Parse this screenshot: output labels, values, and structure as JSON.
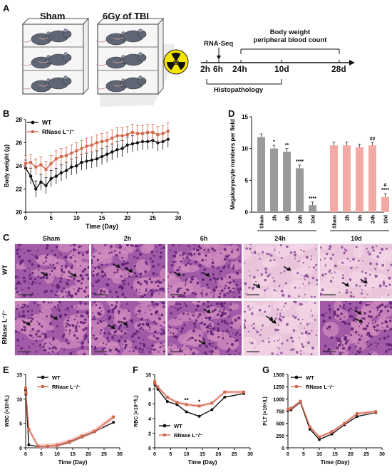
{
  "panels": {
    "A": "A",
    "B": "B",
    "C": "C",
    "D": "D",
    "E": "E",
    "F": "F",
    "G": "G"
  },
  "panel_a": {
    "cage_left_label": "Sham",
    "cage_right_label": "6Gy of TBI",
    "rnaseq_label": "RNA-Seq",
    "bw_label_line1": "Body weight",
    "bw_label_line2": "peripheral blood count",
    "histo_label": "Histopathology",
    "timeline_ticks": [
      "2h",
      "6h",
      "24h",
      "10d",
      "28d"
    ],
    "colors": {
      "cage_line": "#555555",
      "mouse": "#5f6776",
      "radiation_yellow": "#f5e400",
      "timeline": "#111111"
    }
  },
  "panel_c": {
    "col_labels": [
      "Sham",
      "2h",
      "6h",
      "24h",
      "10d"
    ],
    "row_labels": [
      "WT",
      "RNase L⁻/⁻"
    ],
    "colors": {
      "stain_purple": "#7a3a8e",
      "stain_pink": "#e7a7c8",
      "arrow": "#111111"
    }
  },
  "legend": {
    "wt": "WT",
    "ko": "RNase L⁻/⁻"
  },
  "colors": {
    "wt": "#111111",
    "ko": "#d2694e",
    "ko_fill": "#f3a9a4",
    "sham_bar": "#9a9a9a"
  },
  "chart_data": [
    {
      "id": "B",
      "type": "line",
      "xlabel": "Time (Day)",
      "ylabel": "Body weight (g)",
      "xlim": [
        0,
        30
      ],
      "ylim": [
        20,
        28
      ],
      "xticks": [
        0,
        5,
        10,
        15,
        20,
        25,
        30
      ],
      "yticks": [
        20,
        22,
        24,
        26,
        28
      ],
      "x": [
        0,
        1,
        2,
        3,
        4,
        5,
        6,
        7,
        8,
        9,
        10,
        11,
        12,
        13,
        14,
        15,
        16,
        17,
        18,
        19,
        20,
        21,
        22,
        23,
        24,
        25,
        26,
        27,
        28
      ],
      "series": [
        {
          "name": "WT",
          "values": [
            23.8,
            23.1,
            22.0,
            22.6,
            22.3,
            22.9,
            23.1,
            23.4,
            23.6,
            23.9,
            24.0,
            24.3,
            24.4,
            24.5,
            24.6,
            24.8,
            25.0,
            25.2,
            25.4,
            25.5,
            25.8,
            25.9,
            26.0,
            26.1,
            26.1,
            26.2,
            26.0,
            26.1,
            26.3
          ]
        },
        {
          "name": "RNase L⁻/⁻",
          "values": [
            24.2,
            24.3,
            23.9,
            24.1,
            23.7,
            24.2,
            24.6,
            24.8,
            24.9,
            25.1,
            25.3,
            25.5,
            25.7,
            25.8,
            26.0,
            26.1,
            26.2,
            26.4,
            26.6,
            26.6,
            26.7,
            26.9,
            26.8,
            26.8,
            26.9,
            26.9,
            26.7,
            26.8,
            27.0
          ]
        }
      ]
    },
    {
      "id": "D",
      "type": "bar",
      "ylabel": "Megakaryocyte numbers per field",
      "ylim": [
        0,
        15
      ],
      "yticks": [
        0,
        5,
        10,
        15
      ],
      "groups": [
        "WT",
        "RNase L⁻/⁻"
      ],
      "categories": [
        "Sham",
        "2h",
        "6h",
        "24h",
        "10d"
      ],
      "series": [
        {
          "name": "WT",
          "values": [
            11.8,
            10.0,
            9.5,
            6.9,
            1.1
          ],
          "annotations": [
            "",
            "*",
            "**",
            "****",
            "****"
          ]
        },
        {
          "name": "RNase L⁻/⁻",
          "values": [
            10.5,
            10.5,
            10.2,
            10.5,
            2.4
          ],
          "annotations": [
            "",
            "",
            "",
            "##",
            "#\n****"
          ]
        }
      ]
    },
    {
      "id": "E",
      "type": "line",
      "xlabel": "Time (Day)",
      "ylabel": "WBC (×10⁹/L)",
      "xlim": [
        0,
        30
      ],
      "ylim": [
        0,
        15
      ],
      "xticks": [
        0,
        5,
        10,
        15,
        20,
        25,
        30
      ],
      "yticks": [
        0,
        5,
        10,
        15
      ],
      "x": [
        0,
        0.1,
        1,
        4,
        7,
        10,
        14,
        18,
        22,
        28
      ],
      "series": [
        {
          "name": "WT",
          "values": [
            11.8,
            10.9,
            0.6,
            0.25,
            0.3,
            0.45,
            1.1,
            2.2,
            3.3,
            5.2
          ]
        },
        {
          "name": "RNase L⁻/⁻",
          "values": [
            12.2,
            11.3,
            3.8,
            0.3,
            0.35,
            0.55,
            1.3,
            2.4,
            3.4,
            6.3
          ]
        }
      ]
    },
    {
      "id": "F",
      "type": "line",
      "xlabel": "Time (Day)",
      "ylabel": "RBC (×10¹²/L)",
      "xlim": [
        0,
        30
      ],
      "ylim": [
        0,
        10
      ],
      "xticks": [
        0,
        5,
        10,
        15,
        20,
        25,
        30
      ],
      "yticks": [
        0,
        2,
        4,
        6,
        8,
        10
      ],
      "x": [
        0,
        0.1,
        1,
        4,
        7,
        10,
        14,
        18,
        22,
        28
      ],
      "series": [
        {
          "name": "WT",
          "values": [
            8.8,
            8.6,
            8.0,
            6.3,
            5.9,
            4.9,
            4.3,
            5.2,
            6.9,
            7.4
          ]
        },
        {
          "name": "RNase L⁻/⁻",
          "values": [
            9.0,
            8.8,
            8.3,
            6.9,
            6.2,
            5.9,
            5.7,
            6.1,
            7.6,
            7.6
          ]
        }
      ],
      "annotations": [
        {
          "x": 10,
          "text": "**"
        },
        {
          "x": 14,
          "text": "*"
        }
      ]
    },
    {
      "id": "G",
      "type": "line",
      "xlabel": "Time (Day)",
      "ylabel": "PLT (×10⁹/L)",
      "xlim": [
        0,
        30
      ],
      "ylim": [
        0,
        1500
      ],
      "xticks": [
        0,
        5,
        10,
        15,
        20,
        25,
        30
      ],
      "yticks": [
        0,
        250,
        500,
        750,
        1000,
        1250,
        1500
      ],
      "x": [
        0,
        1,
        4,
        7,
        10,
        14,
        18,
        22,
        28
      ],
      "series": [
        {
          "name": "WT",
          "values": [
            760,
            780,
            930,
            380,
            170,
            280,
            470,
            640,
            720
          ]
        },
        {
          "name": "RNase L⁻/⁻",
          "values": [
            780,
            810,
            950,
            430,
            220,
            330,
            500,
            700,
            740
          ]
        }
      ]
    }
  ]
}
